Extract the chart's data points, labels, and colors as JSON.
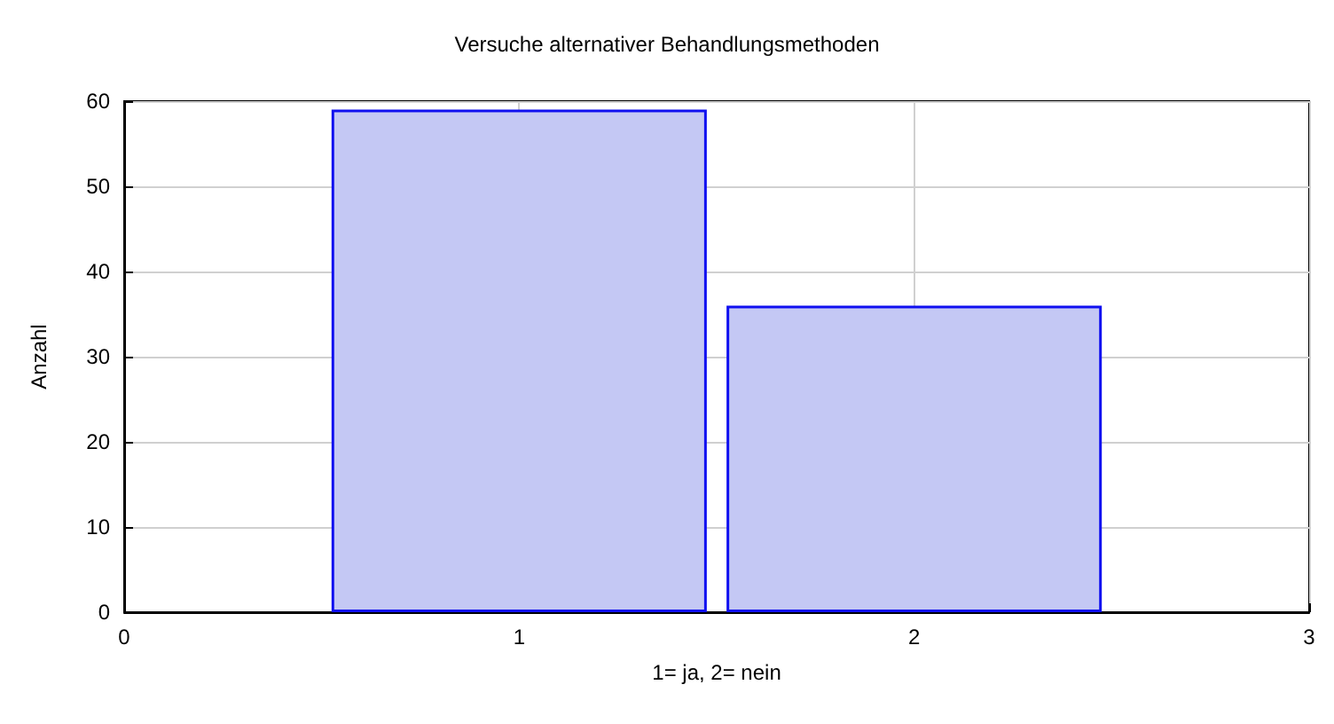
{
  "chart_data": {
    "type": "bar",
    "title": "Versuche alternativer Behandlungsmethoden",
    "xlabel": "1= ja, 2= nein",
    "ylabel": "Anzahl",
    "x": [
      1,
      2
    ],
    "values": [
      59,
      36
    ],
    "color": "#c4c8f4",
    "xlim": [
      0,
      3
    ],
    "xticks": [
      0,
      1,
      2,
      3
    ],
    "ylim": [
      0,
      60
    ],
    "yticks": [
      0,
      10,
      20,
      30,
      40,
      50,
      60
    ],
    "grid": true
  }
}
